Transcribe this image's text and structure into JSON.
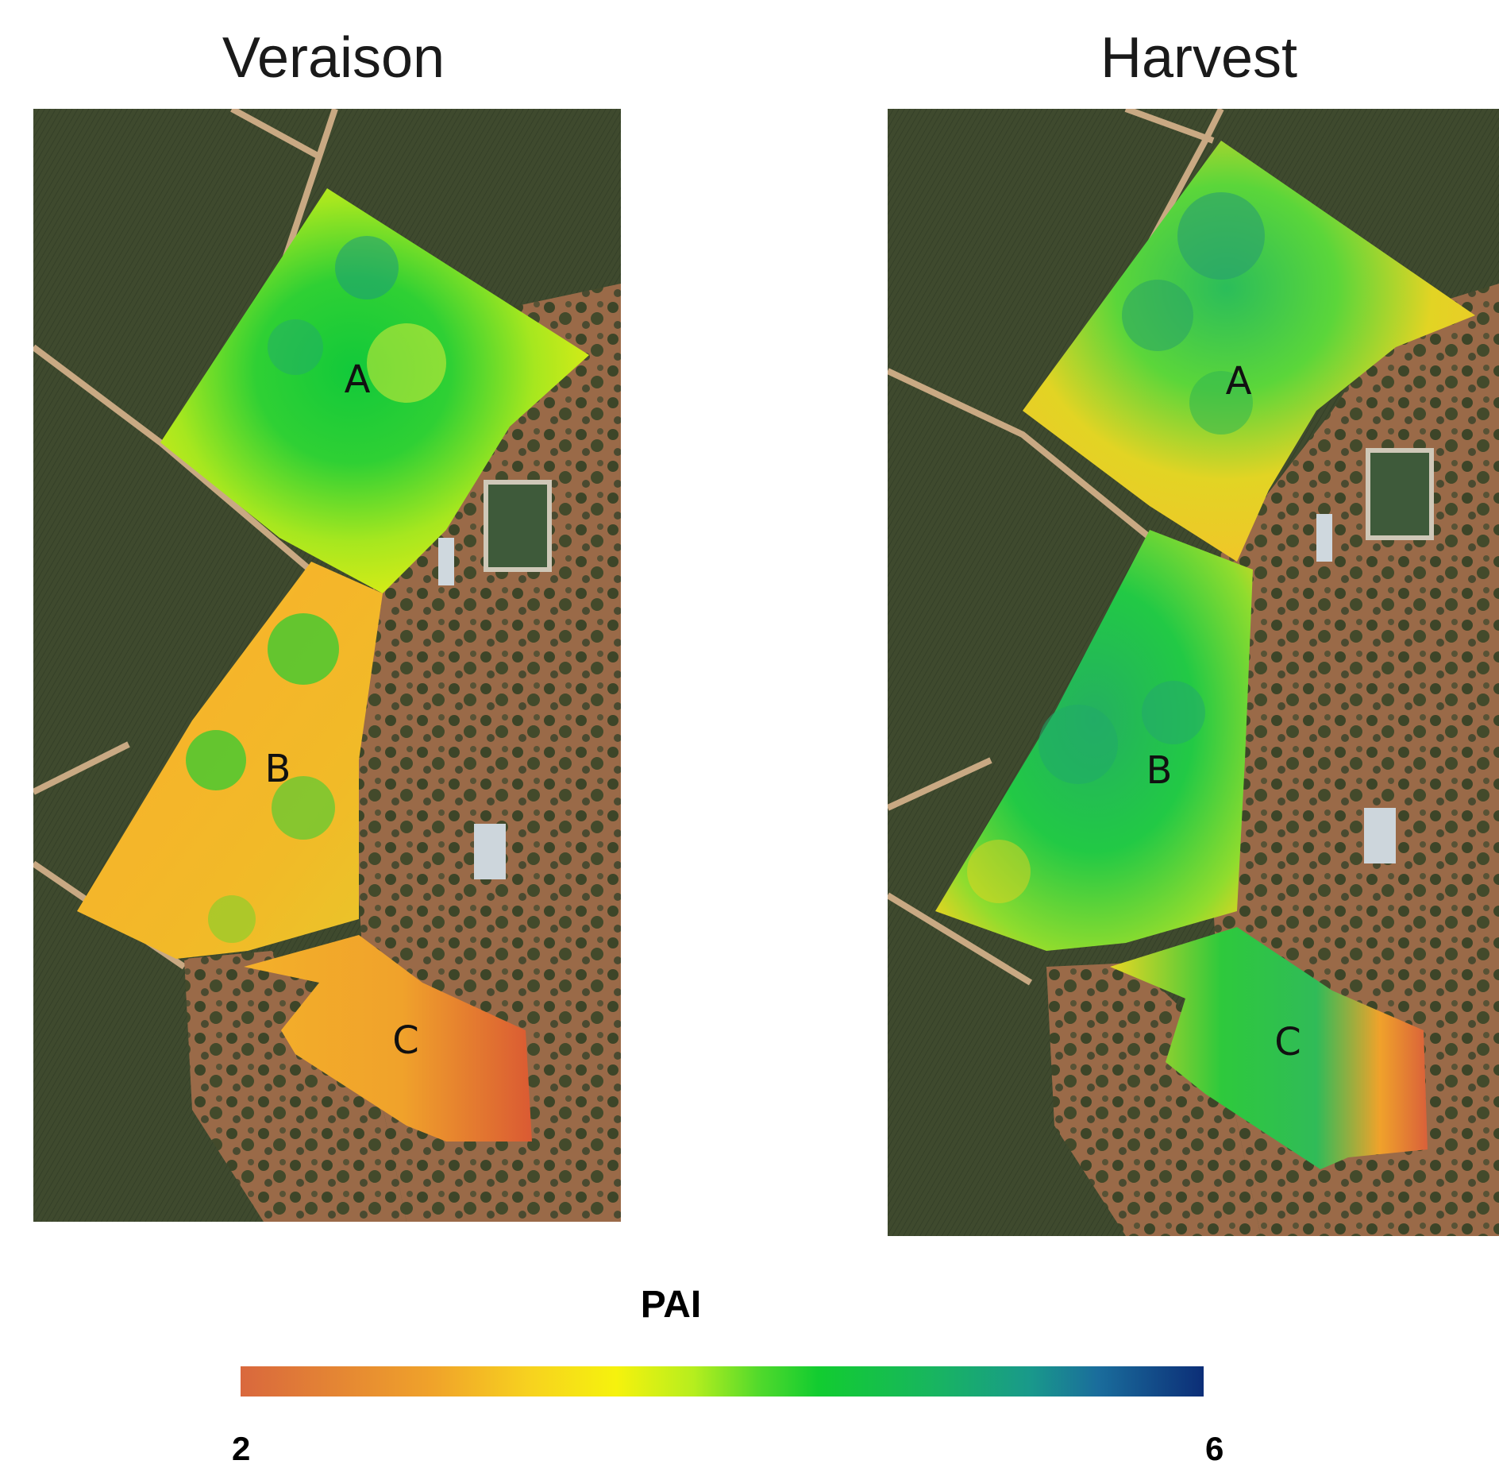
{
  "panels": [
    {
      "title": "Veraison",
      "zones": [
        "A",
        "B",
        "C"
      ]
    },
    {
      "title": "Harvest",
      "zones": [
        "A",
        "B",
        "C"
      ]
    }
  ],
  "legend": {
    "title": "PAI",
    "min_label": "2",
    "max_label": "6",
    "colors": [
      "#d9683d",
      "#f0a32a",
      "#f6f20d",
      "#12cc30",
      "#19998b",
      "#0c2e77"
    ]
  }
}
